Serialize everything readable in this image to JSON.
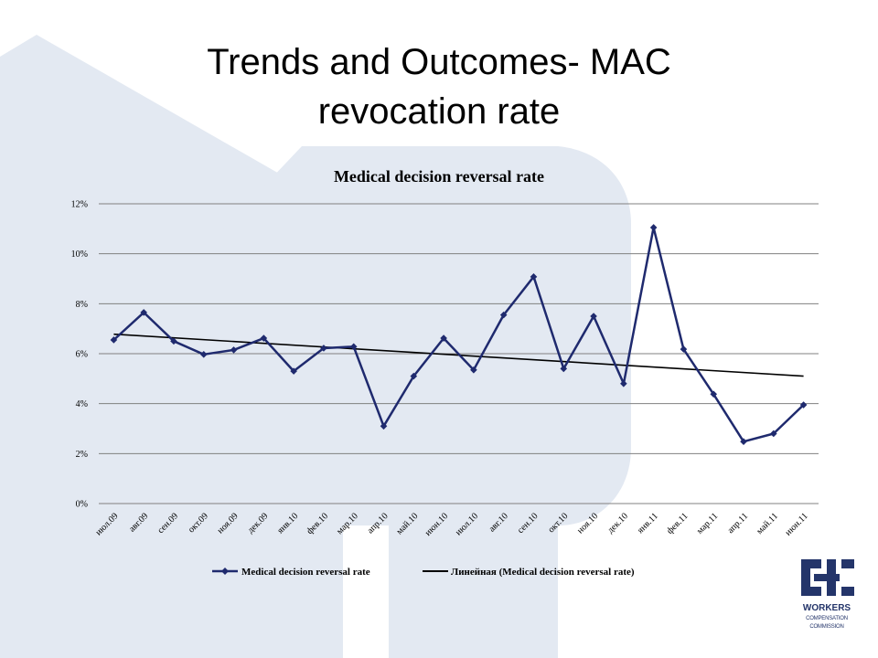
{
  "slide": {
    "title_line_1": "Trends and Outcomes- MAC",
    "title_line_2": "revocation rate"
  },
  "colors": {
    "series": "#1f2a6e",
    "trend": "#000000",
    "grid": "#808080",
    "watermark": "#e3e9f2",
    "logo": "#24356a"
  },
  "logo": {
    "line_1": "WORKERS",
    "line_2": "COMPENSATION",
    "line_3": "COMMISSION"
  },
  "chart_data": {
    "type": "line",
    "title": "Medical decision reversal rate",
    "xlabel": "",
    "ylabel": "",
    "categories": [
      "июл.09",
      "авг.09",
      "сен.09",
      "окт.09",
      "ноя.09",
      "дек.09",
      "янв.10",
      "фев.10",
      "мар.10",
      "апр.10",
      "май.10",
      "июн.10",
      "июл.10",
      "авг.10",
      "сен.10",
      "окт.10",
      "ноя.10",
      "дек.10",
      "янв.11",
      "фев.11",
      "мар.11",
      "апр.11",
      "май.11",
      "июн.11"
    ],
    "ylim": [
      0,
      12
    ],
    "yticks": [
      0,
      2,
      4,
      6,
      8,
      10,
      12
    ],
    "ytick_labels": [
      "0%",
      "2%",
      "4%",
      "6%",
      "8%",
      "10%",
      "12%"
    ],
    "grid": true,
    "legend_position": "bottom",
    "series": [
      {
        "name": "Medical decision reversal rate",
        "marker": "diamond",
        "values": [
          6.55,
          7.65,
          6.5,
          5.97,
          6.15,
          6.62,
          5.3,
          6.22,
          6.28,
          3.1,
          5.1,
          6.62,
          5.35,
          7.55,
          9.08,
          5.4,
          7.5,
          4.8,
          11.05,
          6.18,
          4.38,
          2.48,
          2.8,
          3.95
        ]
      }
    ],
    "trendline": {
      "name": "Линейная (Medical decision reversal rate)",
      "type": "linear",
      "start": 6.78,
      "end": 5.1
    }
  }
}
